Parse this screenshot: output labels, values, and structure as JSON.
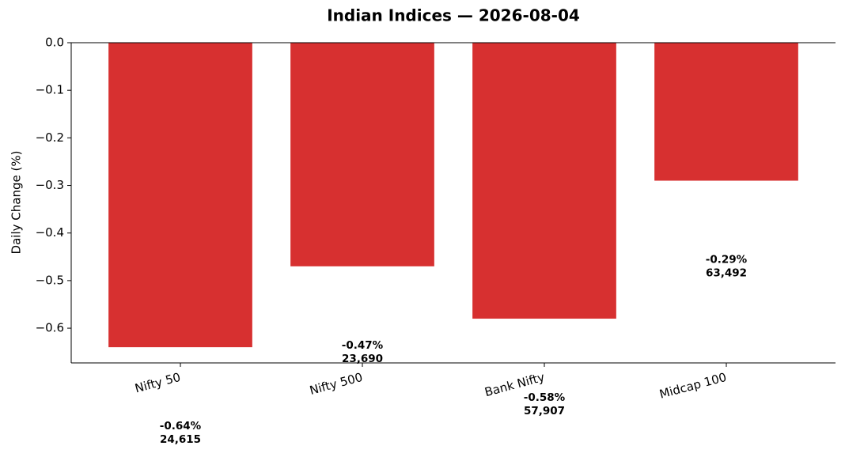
{
  "chart_data": {
    "type": "bar",
    "title": "Indian Indices — 2026-08-04",
    "y_label": "Daily Change (%)",
    "categories": [
      "Nifty 50",
      "Nifty 500",
      "Bank Nifty",
      "Midcap 100"
    ],
    "values": [
      -0.64,
      -0.47,
      -0.58,
      -0.29
    ],
    "value_labels": [
      "-0.64%",
      "-0.47%",
      "-0.58%",
      "-0.29%"
    ],
    "levels": [
      24615,
      23690,
      57907,
      63492
    ],
    "level_labels": [
      "24,615",
      "23,690",
      "57,907",
      "63,492"
    ],
    "color": "#d73030",
    "ylim": [
      -0.673,
      0
    ],
    "yticks": [
      {
        "value": 0,
        "label": "0.0"
      },
      {
        "value": -0.1,
        "label": "−0.1"
      },
      {
        "value": -0.2,
        "label": "−0.2"
      },
      {
        "value": -0.3,
        "label": "−0.3"
      },
      {
        "value": -0.4,
        "label": "−0.4"
      },
      {
        "value": -0.5,
        "label": "−0.5"
      },
      {
        "value": -0.6,
        "label": "−0.6"
      }
    ],
    "grid": false
  }
}
